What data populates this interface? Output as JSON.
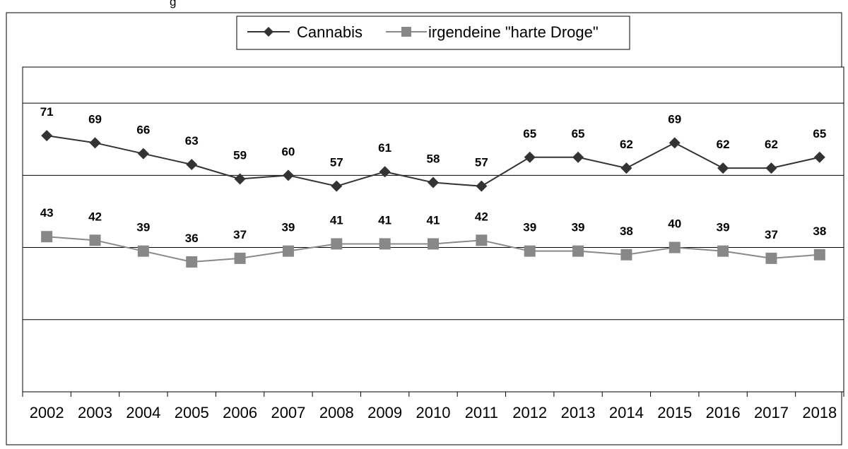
{
  "header_text": "g",
  "chart_data": {
    "type": "line",
    "title": "",
    "xlabel": "",
    "ylabel": "",
    "categories": [
      "2002",
      "2003",
      "2004",
      "2005",
      "2006",
      "2007",
      "2008",
      "2009",
      "2010",
      "2011",
      "2012",
      "2013",
      "2014",
      "2015",
      "2016",
      "2017",
      "2018"
    ],
    "series": [
      {
        "name": "Cannabis",
        "values": [
          71,
          69,
          66,
          63,
          59,
          60,
          57,
          61,
          58,
          57,
          65,
          65,
          62,
          69,
          62,
          62,
          65
        ],
        "color": "#333333",
        "marker": "diamond"
      },
      {
        "name": "irgendeine \"harte Droge\"",
        "values": [
          43,
          42,
          39,
          36,
          37,
          39,
          41,
          41,
          41,
          42,
          39,
          39,
          38,
          40,
          39,
          37,
          38
        ],
        "color": "#888888",
        "marker": "square"
      }
    ],
    "ylim": [
      0,
      90
    ],
    "gridlines": [
      20,
      40,
      60,
      80
    ],
    "data_labels": true,
    "legend_position": "top"
  }
}
